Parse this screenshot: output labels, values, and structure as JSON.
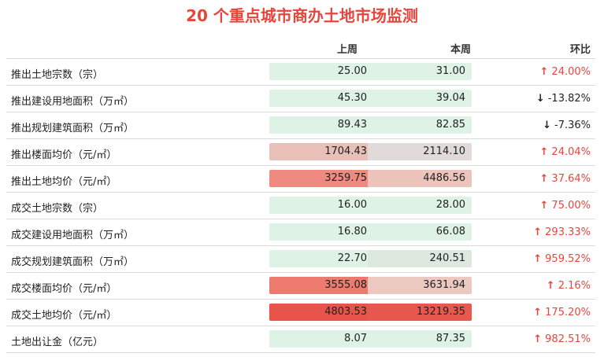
{
  "title": "20 个重点城市商办土地市场监测",
  "headers": {
    "prev": "上周",
    "cur": "本周",
    "ratio": "环比"
  },
  "chart_data": {
    "type": "table",
    "columns": [
      "上周",
      "本周",
      "环比"
    ],
    "rows": [
      {
        "label": "推出土地宗数（宗）",
        "prev": "25.00",
        "cur": "31.00",
        "ratio": "24.00%",
        "dir": "up",
        "prev_color": "#dff2e6",
        "cur_color": "#dff2e6"
      },
      {
        "label": "推出建设用地面积（万㎡）",
        "prev": "45.30",
        "cur": "39.04",
        "ratio": "-13.82%",
        "dir": "down",
        "prev_color": "#dff2e6",
        "cur_color": "#dff2e6"
      },
      {
        "label": "推出规划建筑面积（万㎡）",
        "prev": "89.43",
        "cur": "82.85",
        "ratio": "-7.36%",
        "dir": "down",
        "prev_color": "#dff2e6",
        "cur_color": "#dff2e6"
      },
      {
        "label": "推出楼面均价（元/㎡）",
        "prev": "1704.43",
        "cur": "2114.10",
        "ratio": "24.04%",
        "dir": "up",
        "prev_color": "#e8c0b8",
        "cur_color": "#e0dbd8"
      },
      {
        "label": "推出土地均价（元/㎡）",
        "prev": "3259.75",
        "cur": "4486.56",
        "ratio": "37.64%",
        "dir": "up",
        "prev_color": "#ee8a80",
        "cur_color": "#ecc4bc"
      },
      {
        "label": "成交土地宗数（宗）",
        "prev": "16.00",
        "cur": "28.00",
        "ratio": "75.00%",
        "dir": "up",
        "prev_color": "#dff2e6",
        "cur_color": "#dff2e6"
      },
      {
        "label": "成交建设用地面积（万㎡）",
        "prev": "16.80",
        "cur": "66.08",
        "ratio": "293.33%",
        "dir": "up",
        "prev_color": "#dff2e6",
        "cur_color": "#dff2e6"
      },
      {
        "label": "成交规划建筑面积（万㎡）",
        "prev": "22.70",
        "cur": "240.51",
        "ratio": "959.52%",
        "dir": "up",
        "prev_color": "#dff2e6",
        "cur_color": "#dde9df"
      },
      {
        "label": "成交楼面均价（元/㎡）",
        "prev": "3555.08",
        "cur": "3631.94",
        "ratio": "2.16%",
        "dir": "up",
        "prev_color": "#ed7a6f",
        "cur_color": "#ebc8c0"
      },
      {
        "label": "成交土地均价（元/㎡）",
        "prev": "4803.53",
        "cur": "13219.35",
        "ratio": "175.20%",
        "dir": "up",
        "prev_color": "#e8534a",
        "cur_color": "#e9584e"
      },
      {
        "label": "土地出让金（亿元）",
        "prev": "8.07",
        "cur": "87.35",
        "ratio": "982.51%",
        "dir": "up",
        "prev_color": "#dff2e6",
        "cur_color": "#dff2e6"
      }
    ]
  },
  "icons": {
    "up": "arrow-up-icon",
    "down": "arrow-down-icon"
  }
}
